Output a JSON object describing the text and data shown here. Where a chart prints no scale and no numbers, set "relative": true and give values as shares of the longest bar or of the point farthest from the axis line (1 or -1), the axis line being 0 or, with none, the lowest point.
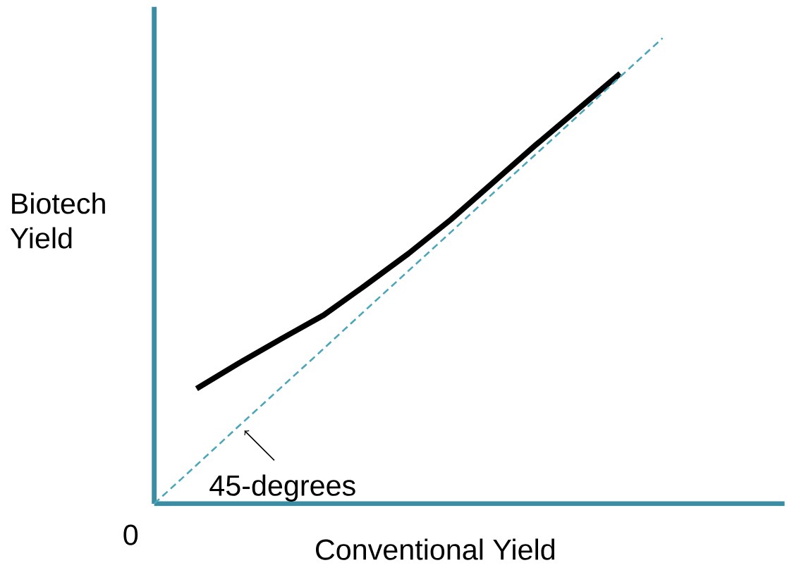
{
  "chart_data": {
    "type": "line",
    "relative": true,
    "xlabel": "Conventional Yield",
    "ylabel": "Biotech Yield",
    "categories": [
      null,
      null,
      null,
      null,
      null,
      null,
      null,
      null,
      null,
      null,
      null,
      null,
      null
    ],
    "series": [
      {
        "color": "#000000",
        "line_style": "solid",
        "values": [
          null,
          0.247,
          0.302,
          0.354,
          0.405,
          0.47,
          0.537,
          0.61,
          0.69,
          0.77,
          0.847,
          0.924,
          null
        ]
      },
      {
        "color": "#4aa6ba",
        "line_style": "dashed",
        "values": [
          0,
          0.083,
          0.167,
          0.25,
          0.333,
          0.417,
          0.5,
          0.583,
          0.667,
          0.75,
          0.833,
          0.917,
          1
        ]
      }
    ],
    "annotations": [
      "45-degrees",
      "0"
    ],
    "marker": "none"
  }
}
